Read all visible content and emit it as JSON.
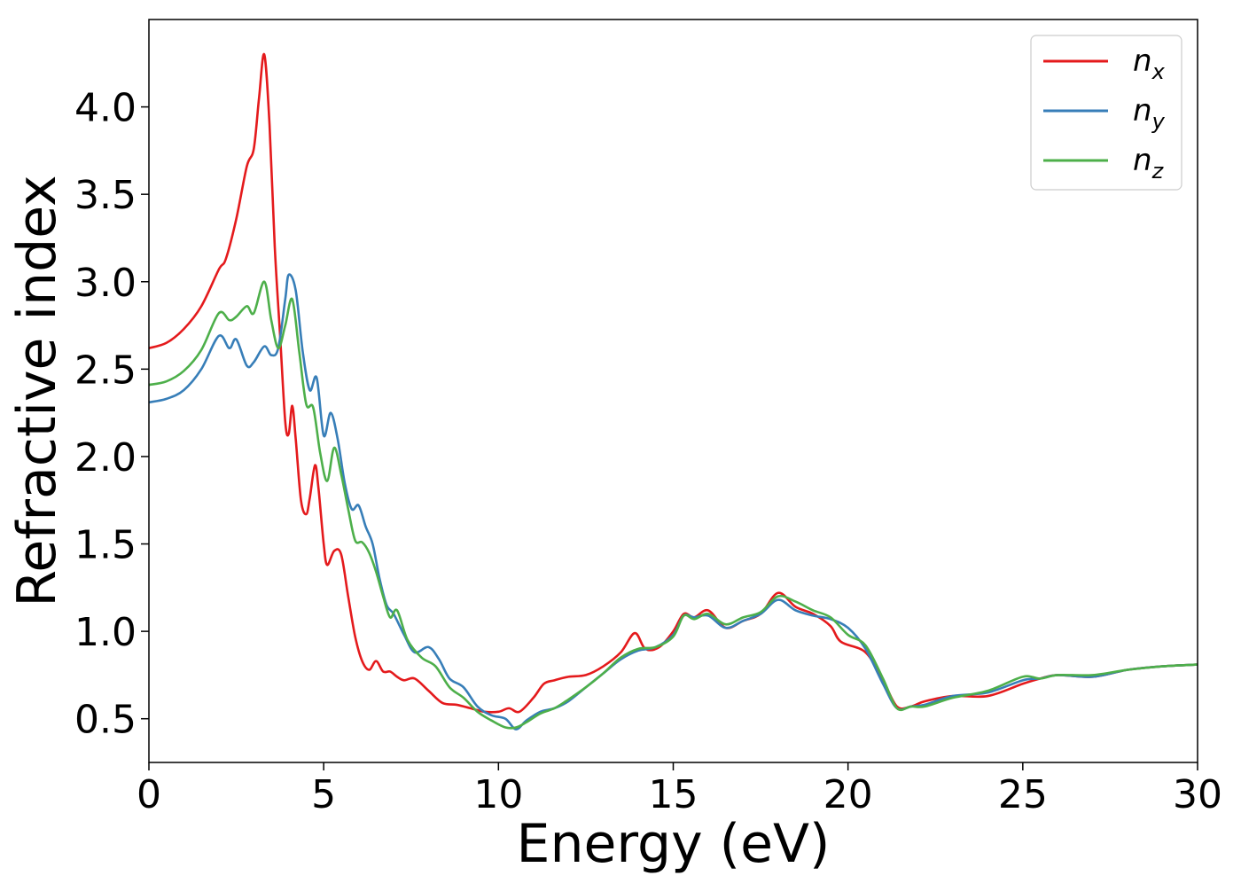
{
  "chart_data": {
    "type": "line",
    "xlabel": "Energy (eV)",
    "ylabel": "Refractive index",
    "xlim": [
      0,
      30
    ],
    "ylim": [
      0.25,
      4.5
    ],
    "xticks": [
      0,
      5,
      10,
      15,
      20,
      25,
      30
    ],
    "xtick_labels": [
      "0",
      "5",
      "10",
      "15",
      "20",
      "25",
      "30"
    ],
    "yticks": [
      0.5,
      1.0,
      1.5,
      2.0,
      2.5,
      3.0,
      3.5,
      4.0
    ],
    "ytick_labels": [
      "0.5",
      "1.0",
      "1.5",
      "2.0",
      "2.5",
      "3.0",
      "3.5",
      "4.0"
    ],
    "grid": false,
    "legend": "top-right",
    "series": [
      {
        "name": "n_x",
        "label_main": "n",
        "label_sub": "x",
        "color": "#e41a1c",
        "x": [
          0,
          0.5,
          1.0,
          1.5,
          2.0,
          2.2,
          2.5,
          2.8,
          3.0,
          3.15,
          3.3,
          3.45,
          3.6,
          3.75,
          3.9,
          4.0,
          4.1,
          4.2,
          4.35,
          4.5,
          4.6,
          4.75,
          4.85,
          5.0,
          5.1,
          5.3,
          5.5,
          5.7,
          5.9,
          6.1,
          6.3,
          6.5,
          6.7,
          6.9,
          7.1,
          7.3,
          7.6,
          8.0,
          8.4,
          8.8,
          9.2,
          9.6,
          10.0,
          10.3,
          10.6,
          11.0,
          11.3,
          11.6,
          12.0,
          12.5,
          13.0,
          13.5,
          13.9,
          14.2,
          14.6,
          15.0,
          15.3,
          15.6,
          16.0,
          16.5,
          17.0,
          17.5,
          18.0,
          18.5,
          19.0,
          19.5,
          19.8,
          20.5,
          21.0,
          21.4,
          21.8,
          22.2,
          23.0,
          24.0,
          25.0,
          25.5,
          26.0,
          27.0,
          28.0,
          29.0,
          30.0
        ],
        "values": [
          2.62,
          2.65,
          2.73,
          2.86,
          3.07,
          3.13,
          3.36,
          3.66,
          3.76,
          4.05,
          4.3,
          3.9,
          3.2,
          2.7,
          2.2,
          2.13,
          2.29,
          2.1,
          1.75,
          1.67,
          1.76,
          1.95,
          1.82,
          1.5,
          1.38,
          1.46,
          1.44,
          1.2,
          0.97,
          0.83,
          0.78,
          0.83,
          0.77,
          0.77,
          0.74,
          0.72,
          0.73,
          0.66,
          0.59,
          0.58,
          0.56,
          0.54,
          0.54,
          0.56,
          0.54,
          0.62,
          0.7,
          0.72,
          0.74,
          0.75,
          0.8,
          0.88,
          0.99,
          0.9,
          0.91,
          1.0,
          1.1,
          1.08,
          1.12,
          1.02,
          1.06,
          1.1,
          1.22,
          1.14,
          1.1,
          1.03,
          0.94,
          0.88,
          0.72,
          0.57,
          0.57,
          0.6,
          0.63,
          0.63,
          0.7,
          0.73,
          0.75,
          0.74,
          0.78,
          0.8,
          0.81
        ]
      },
      {
        "name": "n_y",
        "label_main": "n",
        "label_sub": "y",
        "color": "#377eb8",
        "x": [
          0,
          0.5,
          1.0,
          1.5,
          2.0,
          2.3,
          2.5,
          2.8,
          3.0,
          3.3,
          3.5,
          3.7,
          3.9,
          4.0,
          4.2,
          4.4,
          4.6,
          4.8,
          5.0,
          5.2,
          5.4,
          5.6,
          5.8,
          6.0,
          6.2,
          6.4,
          6.6,
          6.8,
          7.0,
          7.3,
          7.6,
          8.0,
          8.3,
          8.6,
          9.0,
          9.4,
          9.8,
          10.2,
          10.5,
          10.8,
          11.2,
          11.6,
          12.0,
          12.5,
          13.0,
          13.5,
          14.0,
          14.5,
          15.0,
          15.3,
          15.6,
          16.0,
          16.5,
          17.0,
          17.5,
          18.0,
          18.5,
          19.0,
          19.5,
          20.0,
          20.5,
          21.0,
          21.4,
          21.8,
          22.2,
          23.0,
          24.0,
          25.0,
          25.5,
          26.0,
          27.0,
          28.0,
          29.0,
          30.0
        ],
        "values": [
          2.31,
          2.33,
          2.38,
          2.5,
          2.69,
          2.62,
          2.67,
          2.52,
          2.54,
          2.63,
          2.58,
          2.62,
          2.9,
          3.04,
          2.95,
          2.6,
          2.38,
          2.45,
          2.12,
          2.25,
          2.1,
          1.85,
          1.7,
          1.72,
          1.6,
          1.5,
          1.3,
          1.15,
          1.1,
          0.98,
          0.88,
          0.91,
          0.84,
          0.73,
          0.68,
          0.57,
          0.52,
          0.5,
          0.44,
          0.49,
          0.54,
          0.56,
          0.6,
          0.68,
          0.76,
          0.84,
          0.89,
          0.91,
          0.98,
          1.09,
          1.08,
          1.09,
          1.02,
          1.06,
          1.1,
          1.18,
          1.12,
          1.09,
          1.07,
          1.02,
          0.9,
          0.7,
          0.56,
          0.57,
          0.58,
          0.63,
          0.65,
          0.72,
          0.73,
          0.75,
          0.74,
          0.78,
          0.8,
          0.81
        ]
      },
      {
        "name": "n_z",
        "label_main": "n",
        "label_sub": "z",
        "color": "#4daf4a",
        "x": [
          0,
          0.5,
          1.0,
          1.5,
          2.0,
          2.3,
          2.5,
          2.8,
          3.0,
          3.3,
          3.5,
          3.7,
          3.9,
          4.1,
          4.3,
          4.5,
          4.7,
          4.9,
          5.1,
          5.3,
          5.5,
          5.7,
          5.9,
          6.1,
          6.3,
          6.5,
          6.7,
          6.9,
          7.1,
          7.4,
          7.8,
          8.2,
          8.6,
          9.0,
          9.4,
          9.8,
          10.2,
          10.5,
          10.8,
          11.2,
          11.6,
          12.0,
          12.5,
          13.0,
          13.5,
          14.0,
          14.5,
          15.0,
          15.3,
          15.6,
          16.0,
          16.5,
          17.0,
          17.5,
          18.0,
          18.5,
          19.0,
          19.5,
          20.0,
          20.5,
          21.0,
          21.4,
          21.8,
          22.2,
          23.0,
          24.0,
          25.0,
          25.5,
          26.0,
          27.0,
          28.0,
          29.0,
          30.0
        ],
        "values": [
          2.41,
          2.43,
          2.49,
          2.61,
          2.82,
          2.78,
          2.8,
          2.86,
          2.82,
          3.0,
          2.78,
          2.62,
          2.75,
          2.9,
          2.6,
          2.3,
          2.28,
          2.02,
          1.86,
          2.05,
          1.9,
          1.7,
          1.52,
          1.51,
          1.45,
          1.34,
          1.2,
          1.08,
          1.12,
          0.95,
          0.85,
          0.8,
          0.68,
          0.62,
          0.54,
          0.49,
          0.45,
          0.45,
          0.48,
          0.53,
          0.56,
          0.61,
          0.68,
          0.76,
          0.85,
          0.9,
          0.91,
          0.97,
          1.09,
          1.07,
          1.1,
          1.04,
          1.08,
          1.11,
          1.2,
          1.17,
          1.12,
          1.08,
          0.98,
          0.92,
          0.73,
          0.56,
          0.57,
          0.57,
          0.62,
          0.66,
          0.74,
          0.73,
          0.75,
          0.75,
          0.78,
          0.8,
          0.81
        ]
      }
    ]
  }
}
